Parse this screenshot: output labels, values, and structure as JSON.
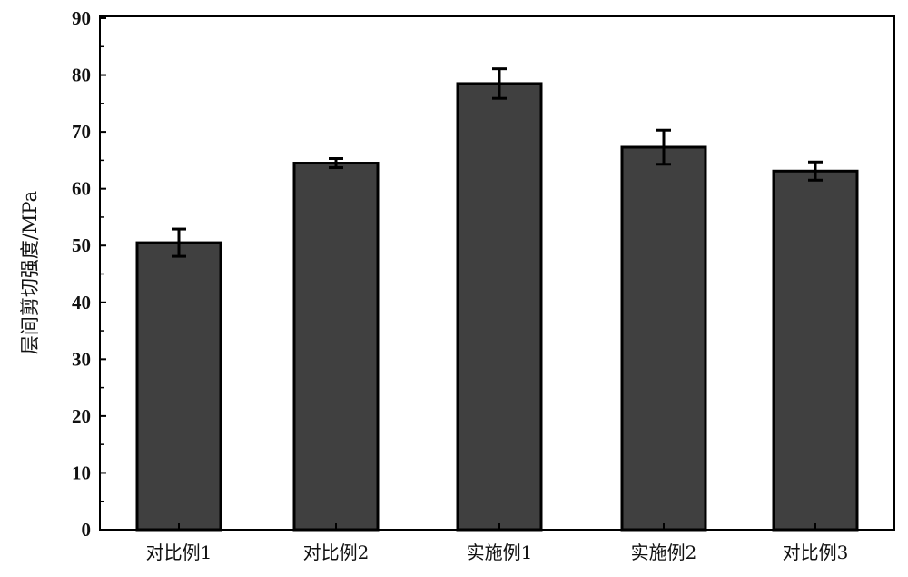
{
  "chart_data": {
    "type": "bar",
    "title": "",
    "xlabel": "",
    "ylabel": "层间剪切强度/MPa",
    "ylim": [
      0,
      90
    ],
    "yticks": [
      0,
      10,
      20,
      30,
      40,
      50,
      60,
      70,
      80,
      90
    ],
    "categories": [
      "对比例1",
      "对比例2",
      "实施例1",
      "实施例2",
      "对比例3"
    ],
    "values": [
      50.5,
      64.5,
      78.5,
      67.3,
      63.1
    ],
    "errors": [
      2.4,
      0.8,
      2.6,
      3.0,
      1.6
    ],
    "grid": false,
    "bar_color": "#404040",
    "edge_color": "#000000"
  }
}
